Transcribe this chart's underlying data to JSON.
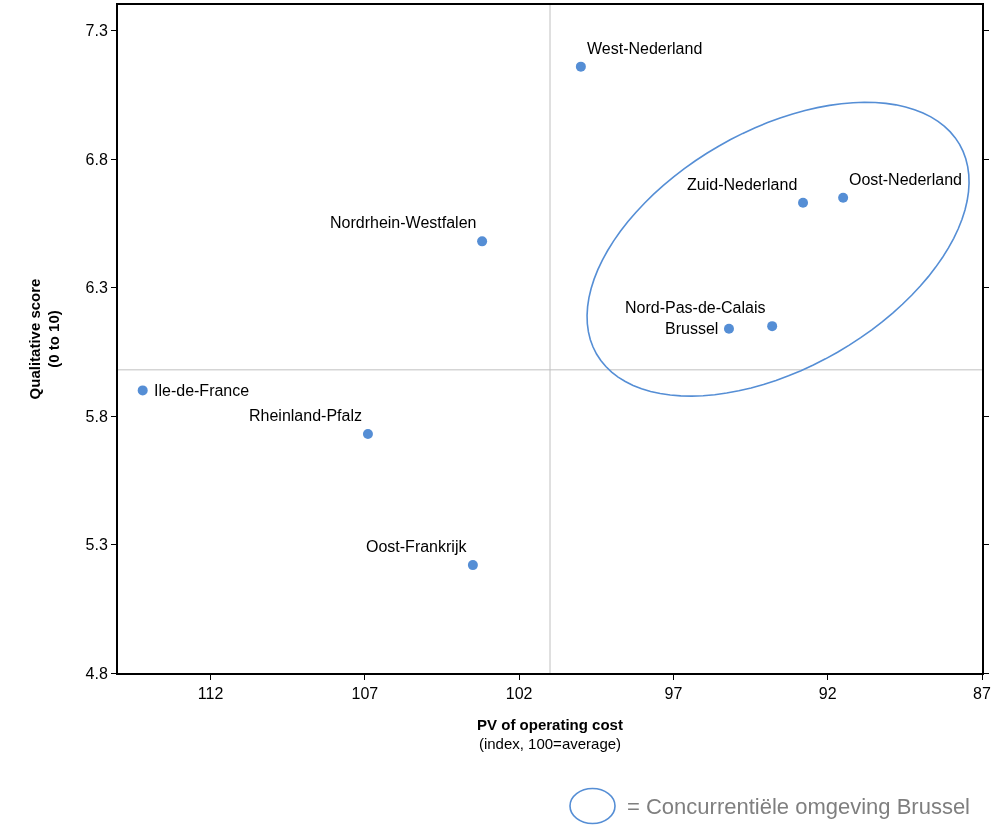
{
  "chart_data": {
    "type": "scatter",
    "xlabel": "PV of operating cost\n(index, 100=average)",
    "ylabel": "Qualitative score\n(0 to 10)",
    "xlim": [
      115,
      87
    ],
    "xticks": [
      112,
      107,
      102,
      97,
      92,
      87
    ],
    "ylim": [
      4.8,
      7.4
    ],
    "yticks": [
      4.8,
      5.3,
      5.8,
      6.3,
      6.8,
      7.3
    ],
    "series": [
      {
        "color": "#558ed5",
        "x": [
          100.0,
          103.2,
          114.2,
          106.9,
          103.5
        ],
        "values": [
          7.16,
          6.48,
          5.9,
          5.73,
          5.22
        ]
      },
      {
        "name": "= Concurrentiële omgeving Brussel",
        "color": "#558ed5",
        "x": [
          92.8,
          91.5,
          93.8,
          95.2
        ],
        "values": [
          6.63,
          6.65,
          6.15,
          6.14
        ]
      }
    ],
    "annotations": [
      {
        "text": "West-Nederland",
        "x": 100.0,
        "y": 7.16
      },
      {
        "text": "Zuid-Nederland",
        "x": 92.8,
        "y": 6.63
      },
      {
        "text": "Oost-Nederland",
        "x": 91.5,
        "y": 6.65
      },
      {
        "text": "Nord-Pas-de-Calais",
        "x": 93.8,
        "y": 6.15
      },
      {
        "text": "Brussel",
        "x": 95.2,
        "y": 6.14
      },
      {
        "text": "Nordrhein-Westfalen",
        "x": 103.2,
        "y": 6.48
      },
      {
        "text": "Ile-de-France",
        "x": 114.2,
        "y": 5.9
      },
      {
        "text": "Rheinland-Pfalz",
        "x": 106.9,
        "y": 5.73
      },
      {
        "text": "Oost-Frankrijk",
        "x": 103.5,
        "y": 5.22
      }
    ],
    "ref_lines": [
      {
        "axis": "x",
        "value": 101.0,
        "color": "#c0c0c0"
      },
      {
        "axis": "y",
        "value": 5.98,
        "color": "#c0c0c0"
      }
    ],
    "marker": "circle",
    "legend": "bottom right"
  }
}
